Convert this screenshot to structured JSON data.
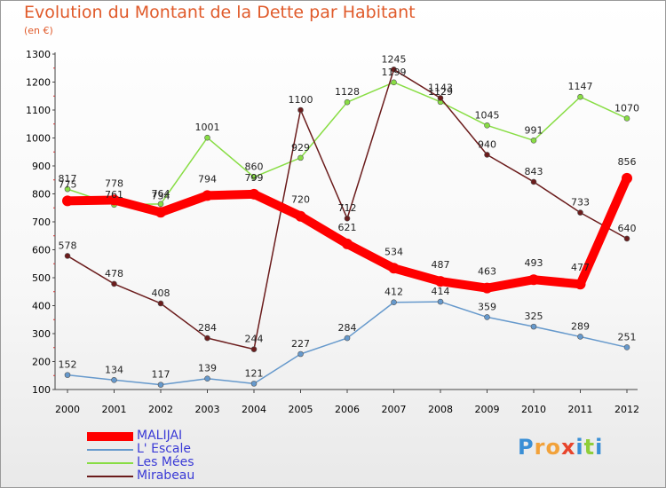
{
  "header": {
    "title": "Evolution du Montant de la Dette par Habitant",
    "subtitle": "(en €)"
  },
  "logo": {
    "text": "Proxiti"
  },
  "chart_data": {
    "type": "line",
    "title": "Evolution du Montant de la Dette par Habitant",
    "subtitle": "(en €)",
    "xlabel": "",
    "ylabel": "",
    "x": [
      "2000",
      "2001",
      "2002",
      "2003",
      "2004",
      "2005",
      "2006",
      "2007",
      "2008",
      "2009",
      "2010",
      "2011",
      "2012"
    ],
    "ylim": [
      100,
      1300
    ],
    "yticks": [
      100,
      200,
      300,
      400,
      500,
      600,
      700,
      800,
      900,
      1000,
      1100,
      1200,
      1300
    ],
    "grid": false,
    "legend_position": "bottom-left",
    "series": [
      {
        "name": "MALIJAI",
        "color": "#ff0000",
        "values": [
          775,
          778,
          734,
          794,
          799,
          720,
          621,
          534,
          487,
          463,
          493,
          477,
          856
        ]
      },
      {
        "name": "L' Escale",
        "color": "#6699cc",
        "values": [
          152,
          134,
          117,
          139,
          121,
          227,
          284,
          412,
          414,
          359,
          325,
          289,
          251
        ]
      },
      {
        "name": "Les Mées",
        "color": "#88dd44",
        "values": [
          817,
          761,
          764,
          1001,
          860,
          929,
          1128,
          1199,
          1129,
          1045,
          991,
          1147,
          1070
        ]
      },
      {
        "name": "Mirabeau",
        "color": "#6b1c1c",
        "values": [
          578,
          478,
          408,
          284,
          244,
          1100,
          712,
          1245,
          1143,
          940,
          843,
          733,
          640
        ]
      }
    ]
  }
}
